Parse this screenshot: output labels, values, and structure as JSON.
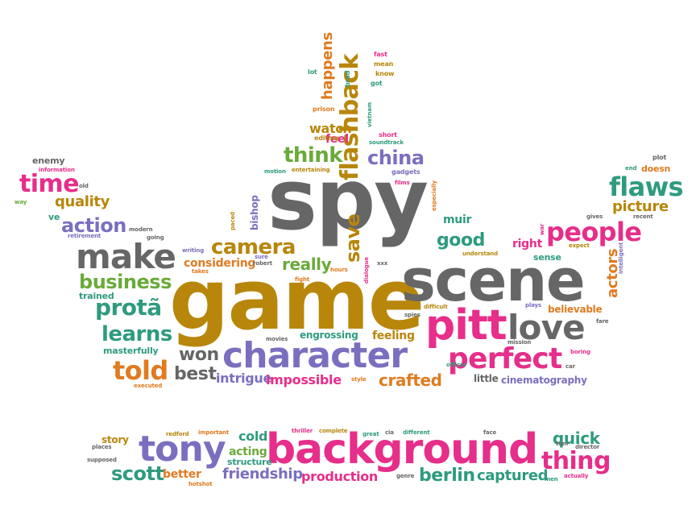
{
  "colors": {
    "gray": "#666666",
    "brown": "#b8860b",
    "pink": "#e62e8a",
    "purple": "#7a6fbf",
    "green": "#6aaa3a",
    "teal": "#2e9b7e",
    "orange": "#e07b20",
    "lightgray": "#9a9a9a"
  },
  "words": [
    {
      "text": "spy",
      "color": "gray"
    },
    {
      "text": "game",
      "color": "brown"
    },
    {
      "text": "scene",
      "color": "gray"
    },
    {
      "text": "background",
      "color": "pink"
    },
    {
      "text": "character",
      "color": "purple"
    },
    {
      "text": "pitt",
      "color": "pink"
    },
    {
      "text": "love",
      "color": "gray"
    },
    {
      "text": "perfect",
      "color": "pink"
    },
    {
      "text": "make",
      "color": "gray"
    },
    {
      "text": "tony",
      "color": "purple"
    },
    {
      "text": "flashback",
      "color": "brown"
    },
    {
      "text": "people",
      "color": "pink"
    },
    {
      "text": "flaws",
      "color": "teal"
    },
    {
      "text": "time",
      "color": "pink"
    },
    {
      "text": "told",
      "color": "orange"
    },
    {
      "text": "camera",
      "color": "brown"
    },
    {
      "text": "action",
      "color": "purple"
    },
    {
      "text": "business",
      "color": "green"
    },
    {
      "text": "protã",
      "color": "teal"
    },
    {
      "text": "learns",
      "color": "teal"
    },
    {
      "text": "thing",
      "color": "pink"
    },
    {
      "text": "china",
      "color": "purple"
    },
    {
      "text": "think",
      "color": "green"
    },
    {
      "text": "scott",
      "color": "teal"
    },
    {
      "text": "berlin",
      "color": "teal"
    },
    {
      "text": "won",
      "color": "gray"
    },
    {
      "text": "best",
      "color": "gray"
    },
    {
      "text": "intrigue",
      "color": "purple"
    },
    {
      "text": "impossible",
      "color": "pink"
    },
    {
      "text": "crafted",
      "color": "orange"
    },
    {
      "text": "really",
      "color": "green"
    },
    {
      "text": "good",
      "color": "teal"
    },
    {
      "text": "save",
      "color": "brown"
    },
    {
      "text": "happens",
      "color": "orange"
    },
    {
      "text": "quality",
      "color": "brown"
    },
    {
      "text": "considering",
      "color": "orange"
    },
    {
      "text": "picture",
      "color": "brown"
    },
    {
      "text": "actors",
      "color": "orange"
    },
    {
      "text": "quick",
      "color": "teal"
    },
    {
      "text": "friendship",
      "color": "purple"
    },
    {
      "text": "production",
      "color": "pink"
    },
    {
      "text": "captured",
      "color": "teal"
    },
    {
      "text": "acting",
      "color": "green"
    },
    {
      "text": "cold",
      "color": "teal"
    },
    {
      "text": "better",
      "color": "orange"
    },
    {
      "text": "watch",
      "color": "brown"
    },
    {
      "text": "feel",
      "color": "pink"
    },
    {
      "text": "right",
      "color": "pink"
    },
    {
      "text": "feeling",
      "color": "brown"
    },
    {
      "text": "story",
      "color": "brown"
    },
    {
      "text": "engrossing",
      "color": "teal"
    },
    {
      "text": "believable",
      "color": "orange"
    },
    {
      "text": "cinematography",
      "color": "purple"
    },
    {
      "text": "little",
      "color": "gray"
    },
    {
      "text": "masterfully",
      "color": "teal"
    },
    {
      "text": "trained",
      "color": "teal"
    },
    {
      "text": "bishop",
      "color": "purple"
    },
    {
      "text": "muir",
      "color": "teal"
    },
    {
      "text": "sense",
      "color": "teal"
    },
    {
      "text": "enemy",
      "color": "gray"
    },
    {
      "text": "structure",
      "color": "teal"
    },
    {
      "text": "ve",
      "color": "teal"
    },
    {
      "text": "doesn",
      "color": "orange"
    },
    {
      "text": "fast",
      "color": "pink"
    },
    {
      "text": "mean",
      "color": "brown"
    },
    {
      "text": "know",
      "color": "brown"
    },
    {
      "text": "got",
      "color": "teal"
    },
    {
      "text": "lot",
      "color": "teal"
    },
    {
      "text": "brad",
      "color": "teal"
    },
    {
      "text": "prison",
      "color": "orange"
    },
    {
      "text": "vietnam",
      "color": "teal"
    },
    {
      "text": "editing",
      "color": "brown"
    },
    {
      "text": "short",
      "color": "pink"
    },
    {
      "text": "soundtrack",
      "color": "teal"
    },
    {
      "text": "entertaining",
      "color": "brown"
    },
    {
      "text": "gadgets",
      "color": "purple"
    },
    {
      "text": "motion",
      "color": "teal"
    },
    {
      "text": "films",
      "color": "pink"
    },
    {
      "text": "especially",
      "color": "orange"
    },
    {
      "text": "plot",
      "color": "gray"
    },
    {
      "text": "end",
      "color": "teal"
    },
    {
      "text": "information",
      "color": "pink"
    },
    {
      "text": "old",
      "color": "gray"
    },
    {
      "text": "way",
      "color": "green"
    },
    {
      "text": "modern",
      "color": "gray"
    },
    {
      "text": "retirement",
      "color": "purple"
    },
    {
      "text": "going",
      "color": "gray"
    },
    {
      "text": "writing",
      "color": "purple"
    },
    {
      "text": "takes",
      "color": "orange"
    },
    {
      "text": "paced",
      "color": "brown"
    },
    {
      "text": "sure",
      "color": "purple"
    },
    {
      "text": "redford",
      "color": "brown"
    },
    {
      "text": "robert",
      "color": "gray"
    },
    {
      "text": "dialogue",
      "color": "pink"
    },
    {
      "text": "xxx",
      "color": "gray"
    },
    {
      "text": "hours",
      "color": "orange"
    },
    {
      "text": "fight",
      "color": "orange"
    },
    {
      "text": "gives",
      "color": "gray"
    },
    {
      "text": "recent",
      "color": "gray"
    },
    {
      "text": "expect",
      "color": "brown"
    },
    {
      "text": "war",
      "color": "pink"
    },
    {
      "text": "intelligent",
      "color": "purple"
    },
    {
      "text": "difficult",
      "color": "brown"
    },
    {
      "text": "plays",
      "color": "purple"
    },
    {
      "text": "spies",
      "color": "gray"
    },
    {
      "text": "fare",
      "color": "gray"
    },
    {
      "text": "movies",
      "color": "gray"
    },
    {
      "text": "mission",
      "color": "gray"
    },
    {
      "text": "boring",
      "color": "pink"
    },
    {
      "text": "officer",
      "color": "teal"
    },
    {
      "text": "car",
      "color": "gray"
    },
    {
      "text": "style",
      "color": "orange"
    },
    {
      "text": "executed",
      "color": "orange"
    },
    {
      "text": "important",
      "color": "orange"
    },
    {
      "text": "thriller",
      "color": "pink"
    },
    {
      "text": "complete",
      "color": "brown"
    },
    {
      "text": "great",
      "color": "teal"
    },
    {
      "text": "cia",
      "color": "gray"
    },
    {
      "text": "different",
      "color": "teal"
    },
    {
      "text": "face",
      "color": "gray"
    },
    {
      "text": "places",
      "color": "gray"
    },
    {
      "text": "supposed",
      "color": "gray"
    },
    {
      "text": "hotshot",
      "color": "orange"
    },
    {
      "text": "genre",
      "color": "gray"
    },
    {
      "text": "men",
      "color": "teal"
    },
    {
      "text": "actually",
      "color": "pink"
    },
    {
      "text": "tom",
      "color": "gray"
    },
    {
      "text": "director",
      "color": "gray"
    },
    {
      "text": "understand",
      "color": "brown"
    }
  ]
}
